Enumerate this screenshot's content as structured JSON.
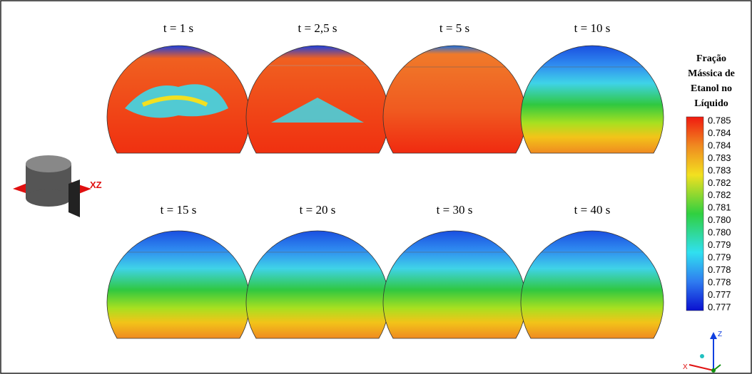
{
  "figure": {
    "panels": [
      {
        "title": "t = 1 s"
      },
      {
        "title": "t = 2,5 s"
      },
      {
        "title": "t = 5 s"
      },
      {
        "title": "t = 10 s"
      },
      {
        "title": "t = 15 s"
      },
      {
        "title": "t = 20 s"
      },
      {
        "title": "t = 30 s"
      },
      {
        "title": "t = 40 s"
      }
    ],
    "colorbar": {
      "title_lines": [
        "Fração",
        "Mássica de",
        "Etanol no",
        "Líquido"
      ],
      "labels": [
        "0.785",
        "0.784",
        "0.784",
        "0.783",
        "0.783",
        "0.782",
        "0.782",
        "0.781",
        "0.780",
        "0.780",
        "0.779",
        "0.779",
        "0.778",
        "0.778",
        "0.777",
        "0.777"
      ]
    },
    "plane_label": "XZ",
    "axes": {
      "z": "Z",
      "x": "X"
    }
  }
}
